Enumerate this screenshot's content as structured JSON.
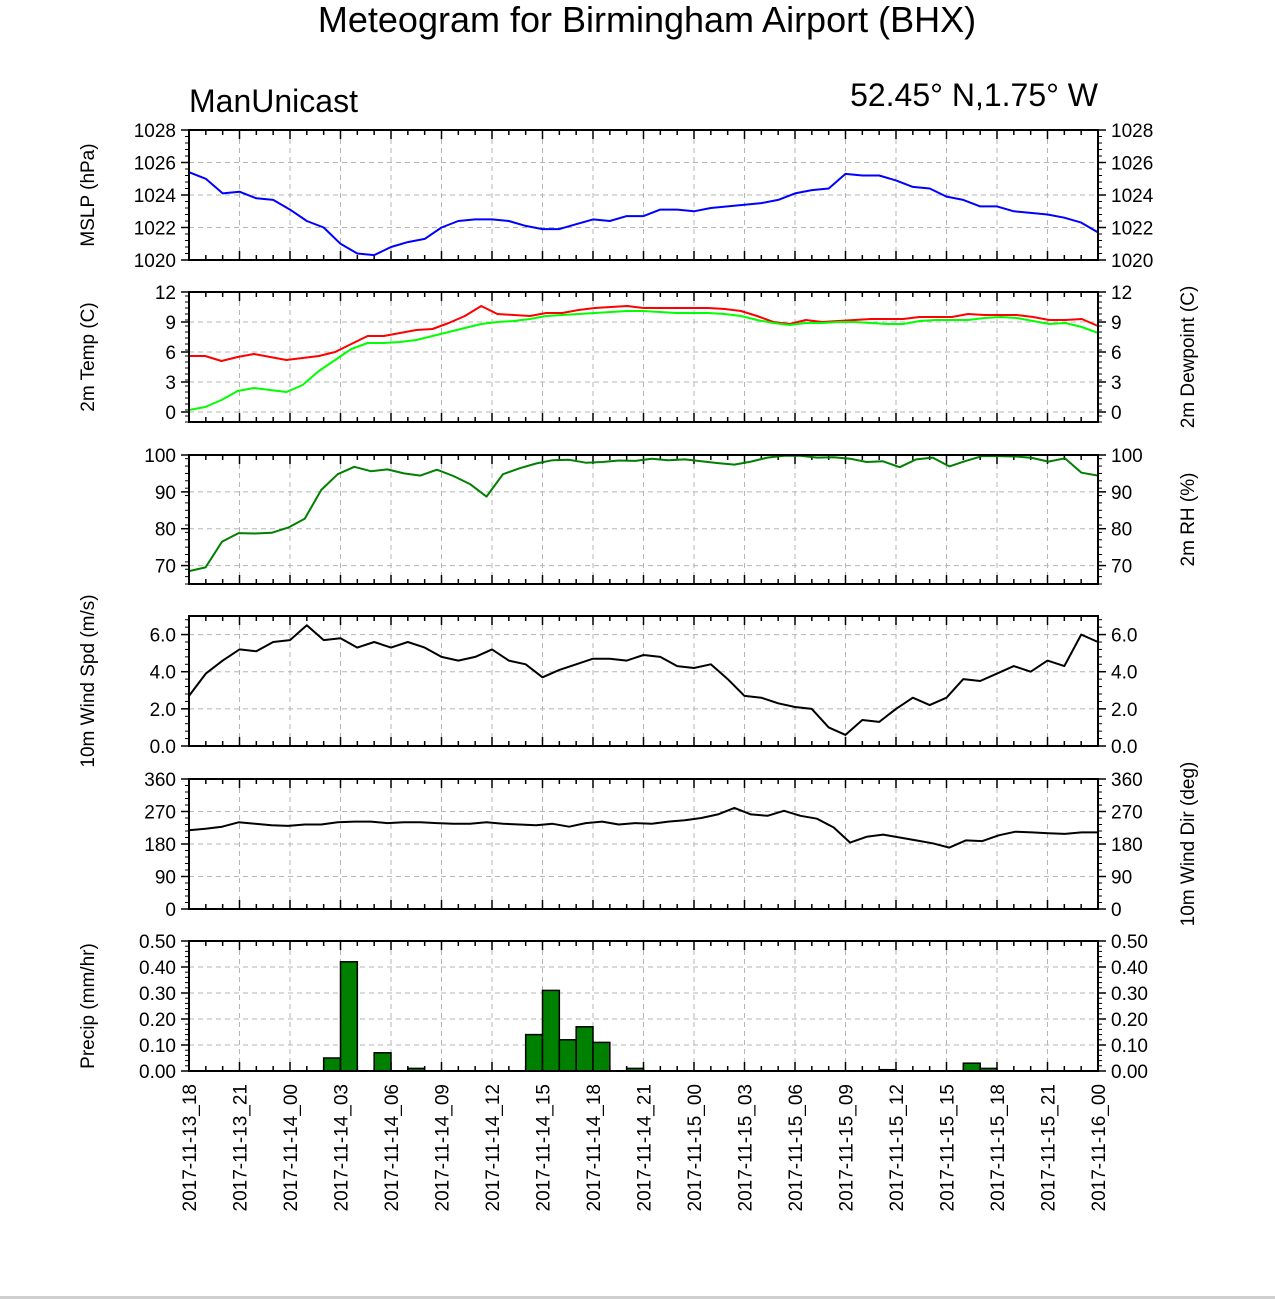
{
  "title": "Meteogram for Birmingham Airport (BHX)",
  "model_label": "ManUnicast",
  "location_label": "52.45° N,1.75° W",
  "x_tick_labels": [
    "2017-11-13_18",
    "2017-11-13_21",
    "2017-11-14_00",
    "2017-11-14_03",
    "2017-11-14_06",
    "2017-11-14_09",
    "2017-11-14_12",
    "2017-11-14_15",
    "2017-11-14_18",
    "2017-11-14_21",
    "2017-11-15_00",
    "2017-11-15_03",
    "2017-11-15_06",
    "2017-11-15_09",
    "2017-11-15_12",
    "2017-11-15_15",
    "2017-11-15_18",
    "2017-11-15_21",
    "2017-11-16_00"
  ],
  "chart_data": [
    {
      "type": "line",
      "ylabel_left": "MSLP (hPa)",
      "ylabel_right": "",
      "ylim": [
        1020,
        1028
      ],
      "yticks": [
        1020,
        1022,
        1024,
        1026,
        1028
      ],
      "tick_decimals": 0,
      "labels_right": true,
      "series": [
        {
          "color": "#0000ff",
          "values": [
            1025.4,
            1025.0,
            1024.1,
            1024.2,
            1023.8,
            1023.7,
            1023.1,
            1022.4,
            1022.0,
            1021.0,
            1020.4,
            1020.3,
            1020.8,
            1021.1,
            1021.3,
            1022.0,
            1022.4,
            1022.5,
            1022.5,
            1022.4,
            1022.1,
            1021.9,
            1021.9,
            1022.2,
            1022.5,
            1022.4,
            1022.7,
            1022.7,
            1023.1,
            1023.1,
            1023.0,
            1023.2,
            1023.3,
            1023.4,
            1023.5,
            1023.7,
            1024.1,
            1024.3,
            1024.4,
            1025.3,
            1025.2,
            1025.2,
            1024.9,
            1024.5,
            1024.4,
            1023.9,
            1023.7,
            1023.3,
            1023.3,
            1023.0,
            1022.9,
            1022.8,
            1022.6,
            1022.3,
            1021.7
          ]
        }
      ]
    },
    {
      "type": "line",
      "ylabel_left": "2m Temp (C)",
      "ylabel_right": "2m Dewpoint (C)",
      "ylim": [
        -1,
        12
      ],
      "yticks": [
        0,
        3,
        6,
        9,
        12
      ],
      "tick_decimals": 0,
      "labels_right": true,
      "series": [
        {
          "color": "#ff0000",
          "values": [
            5.6,
            5.6,
            5.1,
            5.5,
            5.8,
            5.5,
            5.2,
            5.4,
            5.6,
            6.0,
            6.8,
            7.6,
            7.6,
            7.9,
            8.2,
            8.3,
            8.9,
            9.6,
            10.6,
            9.8,
            9.7,
            9.6,
            9.9,
            9.9,
            10.2,
            10.4,
            10.5,
            10.6,
            10.4,
            10.4,
            10.4,
            10.4,
            10.4,
            10.3,
            10.1,
            9.6,
            9.0,
            8.8,
            9.2,
            9.0,
            9.1,
            9.2,
            9.3,
            9.3,
            9.3,
            9.5,
            9.5,
            9.5,
            9.8,
            9.7,
            9.7,
            9.7,
            9.5,
            9.2,
            9.2,
            9.3,
            8.6
          ]
        },
        {
          "color": "#00ff00",
          "values": [
            0.2,
            0.5,
            1.2,
            2.1,
            2.4,
            2.2,
            2.0,
            2.7,
            4.1,
            5.2,
            6.3,
            6.9,
            6.9,
            7.0,
            7.2,
            7.6,
            8.0,
            8.4,
            8.8,
            9.0,
            9.1,
            9.3,
            9.6,
            9.7,
            9.8,
            9.9,
            10.0,
            10.1,
            10.1,
            10.0,
            9.9,
            9.9,
            9.9,
            9.8,
            9.6,
            9.2,
            8.9,
            8.7,
            8.9,
            8.9,
            9.0,
            9.0,
            8.9,
            8.8,
            8.8,
            9.1,
            9.2,
            9.2,
            9.2,
            9.4,
            9.5,
            9.4,
            9.1,
            8.8,
            8.9,
            8.5,
            7.9
          ]
        }
      ]
    },
    {
      "type": "line",
      "ylabel_left": "",
      "ylabel_right": "2m RH (%)",
      "ylim": [
        65,
        100
      ],
      "yticks": [
        70,
        80,
        90,
        100
      ],
      "tick_decimals": 0,
      "labels_right": true,
      "series": [
        {
          "color": "#008000",
          "values": [
            68.5,
            69.5,
            76.5,
            78.8,
            78.7,
            78.9,
            80.3,
            82.7,
            90.5,
            94.8,
            96.8,
            95.6,
            96.1,
            95.0,
            94.4,
            96.0,
            94.3,
            92.1,
            88.7,
            94.8,
            96.4,
            97.7,
            98.6,
            98.7,
            97.9,
            98.1,
            98.5,
            98.4,
            99.0,
            98.6,
            98.8,
            98.3,
            97.8,
            97.4,
            98.2,
            99.3,
            99.8,
            99.8,
            99.3,
            99.4,
            99.0,
            98.1,
            98.3,
            96.7,
            98.8,
            99.3,
            96.9,
            98.4,
            99.7,
            99.7,
            99.6,
            99.2,
            98.2,
            99.1,
            95.2,
            94.4
          ]
        }
      ]
    },
    {
      "type": "line",
      "ylabel_left": "10m Wind Spd (m/s)",
      "ylabel_right": "",
      "ylim": [
        0,
        7
      ],
      "yticks": [
        0,
        2,
        4,
        6
      ],
      "tick_decimals": 1,
      "labels_right": true,
      "series": [
        {
          "color": "#000000",
          "values": [
            2.7,
            3.9,
            4.6,
            5.2,
            5.1,
            5.6,
            5.7,
            6.5,
            5.7,
            5.8,
            5.3,
            5.6,
            5.3,
            5.6,
            5.3,
            4.8,
            4.6,
            4.8,
            5.2,
            4.6,
            4.4,
            3.7,
            4.1,
            4.4,
            4.7,
            4.7,
            4.6,
            4.9,
            4.8,
            4.3,
            4.2,
            4.4,
            3.6,
            2.7,
            2.6,
            2.3,
            2.1,
            2.0,
            1.0,
            0.6,
            1.4,
            1.3,
            2.0,
            2.6,
            2.2,
            2.6,
            3.6,
            3.5,
            3.9,
            4.3,
            4.0,
            4.6,
            4.3,
            6.0,
            5.6
          ]
        }
      ]
    },
    {
      "type": "line",
      "ylabel_left": "",
      "ylabel_right": "10m Wind Dir (deg)",
      "ylim": [
        0,
        360
      ],
      "yticks": [
        0,
        90,
        180,
        270,
        360
      ],
      "tick_decimals": 0,
      "labels_right": true,
      "series": [
        {
          "color": "#000000",
          "values": [
            218,
            222,
            228,
            240,
            236,
            232,
            230,
            234,
            234,
            240,
            242,
            242,
            238,
            240,
            240,
            238,
            236,
            236,
            240,
            236,
            234,
            232,
            236,
            228,
            238,
            242,
            234,
            238,
            236,
            242,
            246,
            252,
            262,
            280,
            262,
            258,
            272,
            258,
            250,
            226,
            184,
            200,
            206,
            198,
            190,
            182,
            170,
            190,
            188,
            204,
            214,
            212,
            210,
            208,
            212,
            212
          ]
        }
      ]
    },
    {
      "type": "bar",
      "ylabel_left": "Precip (mm/hr)",
      "ylabel_right": "",
      "ylim": [
        0,
        0.5
      ],
      "yticks": [
        0.0,
        0.1,
        0.2,
        0.3,
        0.4,
        0.5
      ],
      "tick_decimals": 2,
      "labels_right": true,
      "bar_color": "#008000",
      "values": [
        0,
        0,
        0,
        0,
        0,
        0,
        0,
        0,
        0.05,
        0.42,
        0,
        0.07,
        0,
        0.01,
        0,
        0,
        0,
        0,
        0,
        0,
        0.14,
        0.31,
        0.12,
        0.17,
        0.11,
        0,
        0.01,
        0,
        0,
        0,
        0,
        0,
        0,
        0,
        0,
        0,
        0,
        0,
        0,
        0,
        0,
        0.005,
        0,
        0,
        0,
        0,
        0.03,
        0.01,
        0,
        0,
        0,
        0,
        0,
        0,
        0
      ]
    }
  ]
}
